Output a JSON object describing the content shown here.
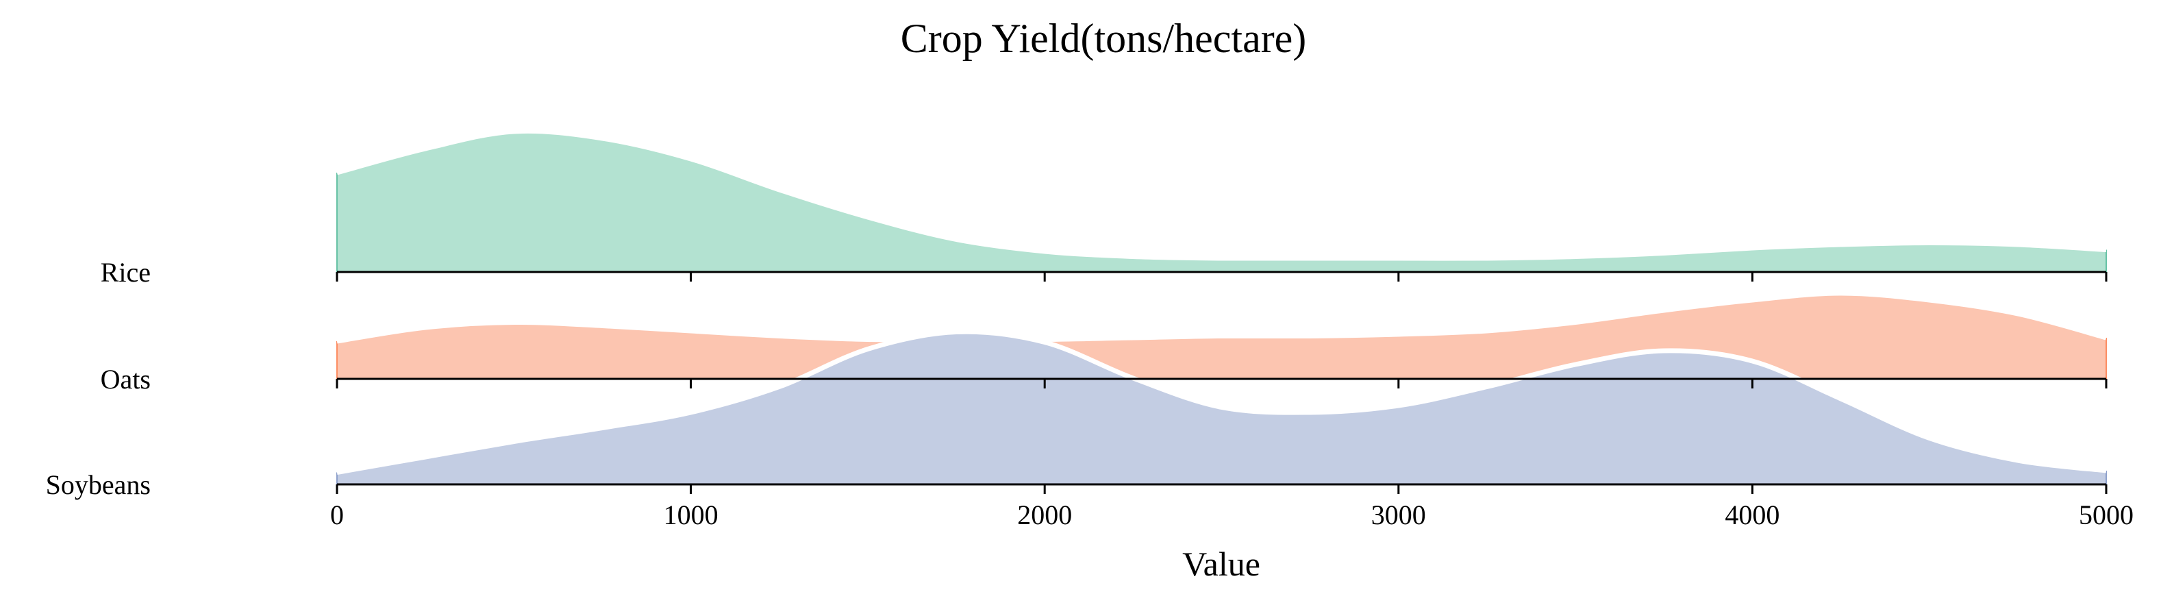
{
  "chart_data": {
    "type": "area",
    "title": "Crop Yield(tons/hectare)",
    "xlabel": "Value",
    "ylabel": "",
    "xlim": [
      0,
      5000
    ],
    "xticks": [
      "0",
      "1000",
      "2000",
      "3000",
      "4000",
      "5000"
    ],
    "x": [
      0,
      250,
      500,
      750,
      1000,
      1250,
      1500,
      1750,
      2000,
      2250,
      2500,
      2750,
      3000,
      3250,
      3500,
      3750,
      4000,
      4250,
      4500,
      4750,
      5000
    ],
    "series": [
      {
        "name": "Rice",
        "color": "#b3e2d1",
        "edge_color": "#66c2a5",
        "values": [
          0.58,
          0.72,
          0.82,
          0.78,
          0.66,
          0.48,
          0.32,
          0.19,
          0.12,
          0.09,
          0.08,
          0.08,
          0.08,
          0.08,
          0.09,
          0.11,
          0.14,
          0.16,
          0.17,
          0.16,
          0.13
        ]
      },
      {
        "name": "Oats",
        "color": "#fcc5b0",
        "edge_color": "#fc8d62",
        "values": [
          0.22,
          0.3,
          0.33,
          0.31,
          0.28,
          0.25,
          0.23,
          0.23,
          0.23,
          0.24,
          0.25,
          0.25,
          0.26,
          0.28,
          0.33,
          0.4,
          0.46,
          0.5,
          0.46,
          0.38,
          0.24
        ]
      },
      {
        "name": "Soybeans",
        "color": "#c3cde3",
        "edge_color": "#8da0cb",
        "values": [
          0.07,
          0.16,
          0.25,
          0.33,
          0.42,
          0.57,
          0.79,
          0.89,
          0.83,
          0.62,
          0.45,
          0.42,
          0.46,
          0.57,
          0.7,
          0.78,
          0.72,
          0.5,
          0.27,
          0.14,
          0.08
        ]
      }
    ],
    "legend": "none",
    "grid": false
  }
}
